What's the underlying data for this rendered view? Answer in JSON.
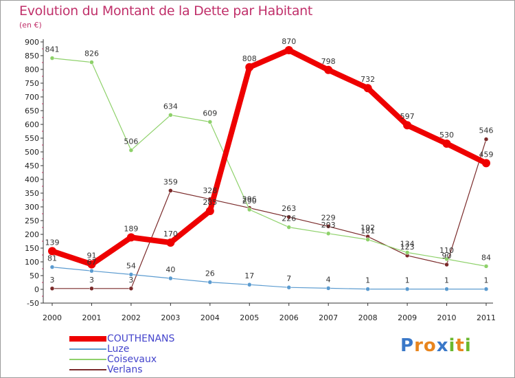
{
  "title": "Evolution du Montant de la Dette par Habitant",
  "subtitle": "(en €)",
  "logo_text": "Proxiti",
  "logo_colors": [
    "#3a78c8",
    "#e8851e",
    "#e8851e",
    "#3a78c8",
    "#6ab82e",
    "#e8851e",
    "#6ab82e"
  ],
  "chart_data": {
    "type": "line",
    "title": "Evolution du Montant de la Dette par Habitant",
    "subtitle": "(en €)",
    "x": [
      "2000",
      "2001",
      "2002",
      "2003",
      "2004",
      "2005",
      "2006",
      "2007",
      "2008",
      "2009",
      "2010",
      "2011"
    ],
    "ylim": [
      -50,
      900
    ],
    "yticks": [
      -50,
      0,
      50,
      100,
      150,
      200,
      250,
      300,
      350,
      400,
      450,
      500,
      550,
      600,
      650,
      700,
      750,
      800,
      850,
      900
    ],
    "grid": false,
    "legend_position": "bottom-left",
    "series": [
      {
        "name": "COUTHENANS",
        "color": "#ee0000",
        "values": [
          139,
          91,
          189,
          170,
          285,
          808,
          870,
          798,
          732,
          597,
          530,
          459
        ],
        "labels": [
          "139",
          "91",
          "189",
          "170",
          "285",
          "808",
          "870",
          "798",
          "732",
          "597",
          "530",
          "459"
        ]
      },
      {
        "name": "Luze",
        "color": "#5b9bd0",
        "values": [
          81,
          67,
          54,
          40,
          26,
          17,
          7,
          4,
          1,
          1,
          1,
          1
        ],
        "labels": [
          "81",
          "67",
          "54",
          "40",
          "26",
          "17",
          "7",
          "4",
          "1",
          "1",
          "1",
          "1"
        ]
      },
      {
        "name": "Coisevaux",
        "color": "#8ed16a",
        "values": [
          841,
          826,
          506,
          634,
          609,
          290,
          226,
          203,
          181,
          134,
          110,
          84
        ],
        "labels": [
          "841",
          "826",
          "506",
          "634",
          "609",
          "290",
          "226",
          "203",
          "181",
          "134",
          "110",
          "84"
        ]
      },
      {
        "name": "Verlans",
        "color": "#7a2a2a",
        "values": [
          3,
          3,
          3,
          359,
          328,
          296,
          263,
          229,
          192,
          123,
          90,
          546
        ],
        "labels": [
          "3",
          "3",
          "3",
          "359",
          "328",
          "296",
          "263",
          "229",
          "192",
          "123",
          "90",
          "546"
        ]
      }
    ]
  }
}
